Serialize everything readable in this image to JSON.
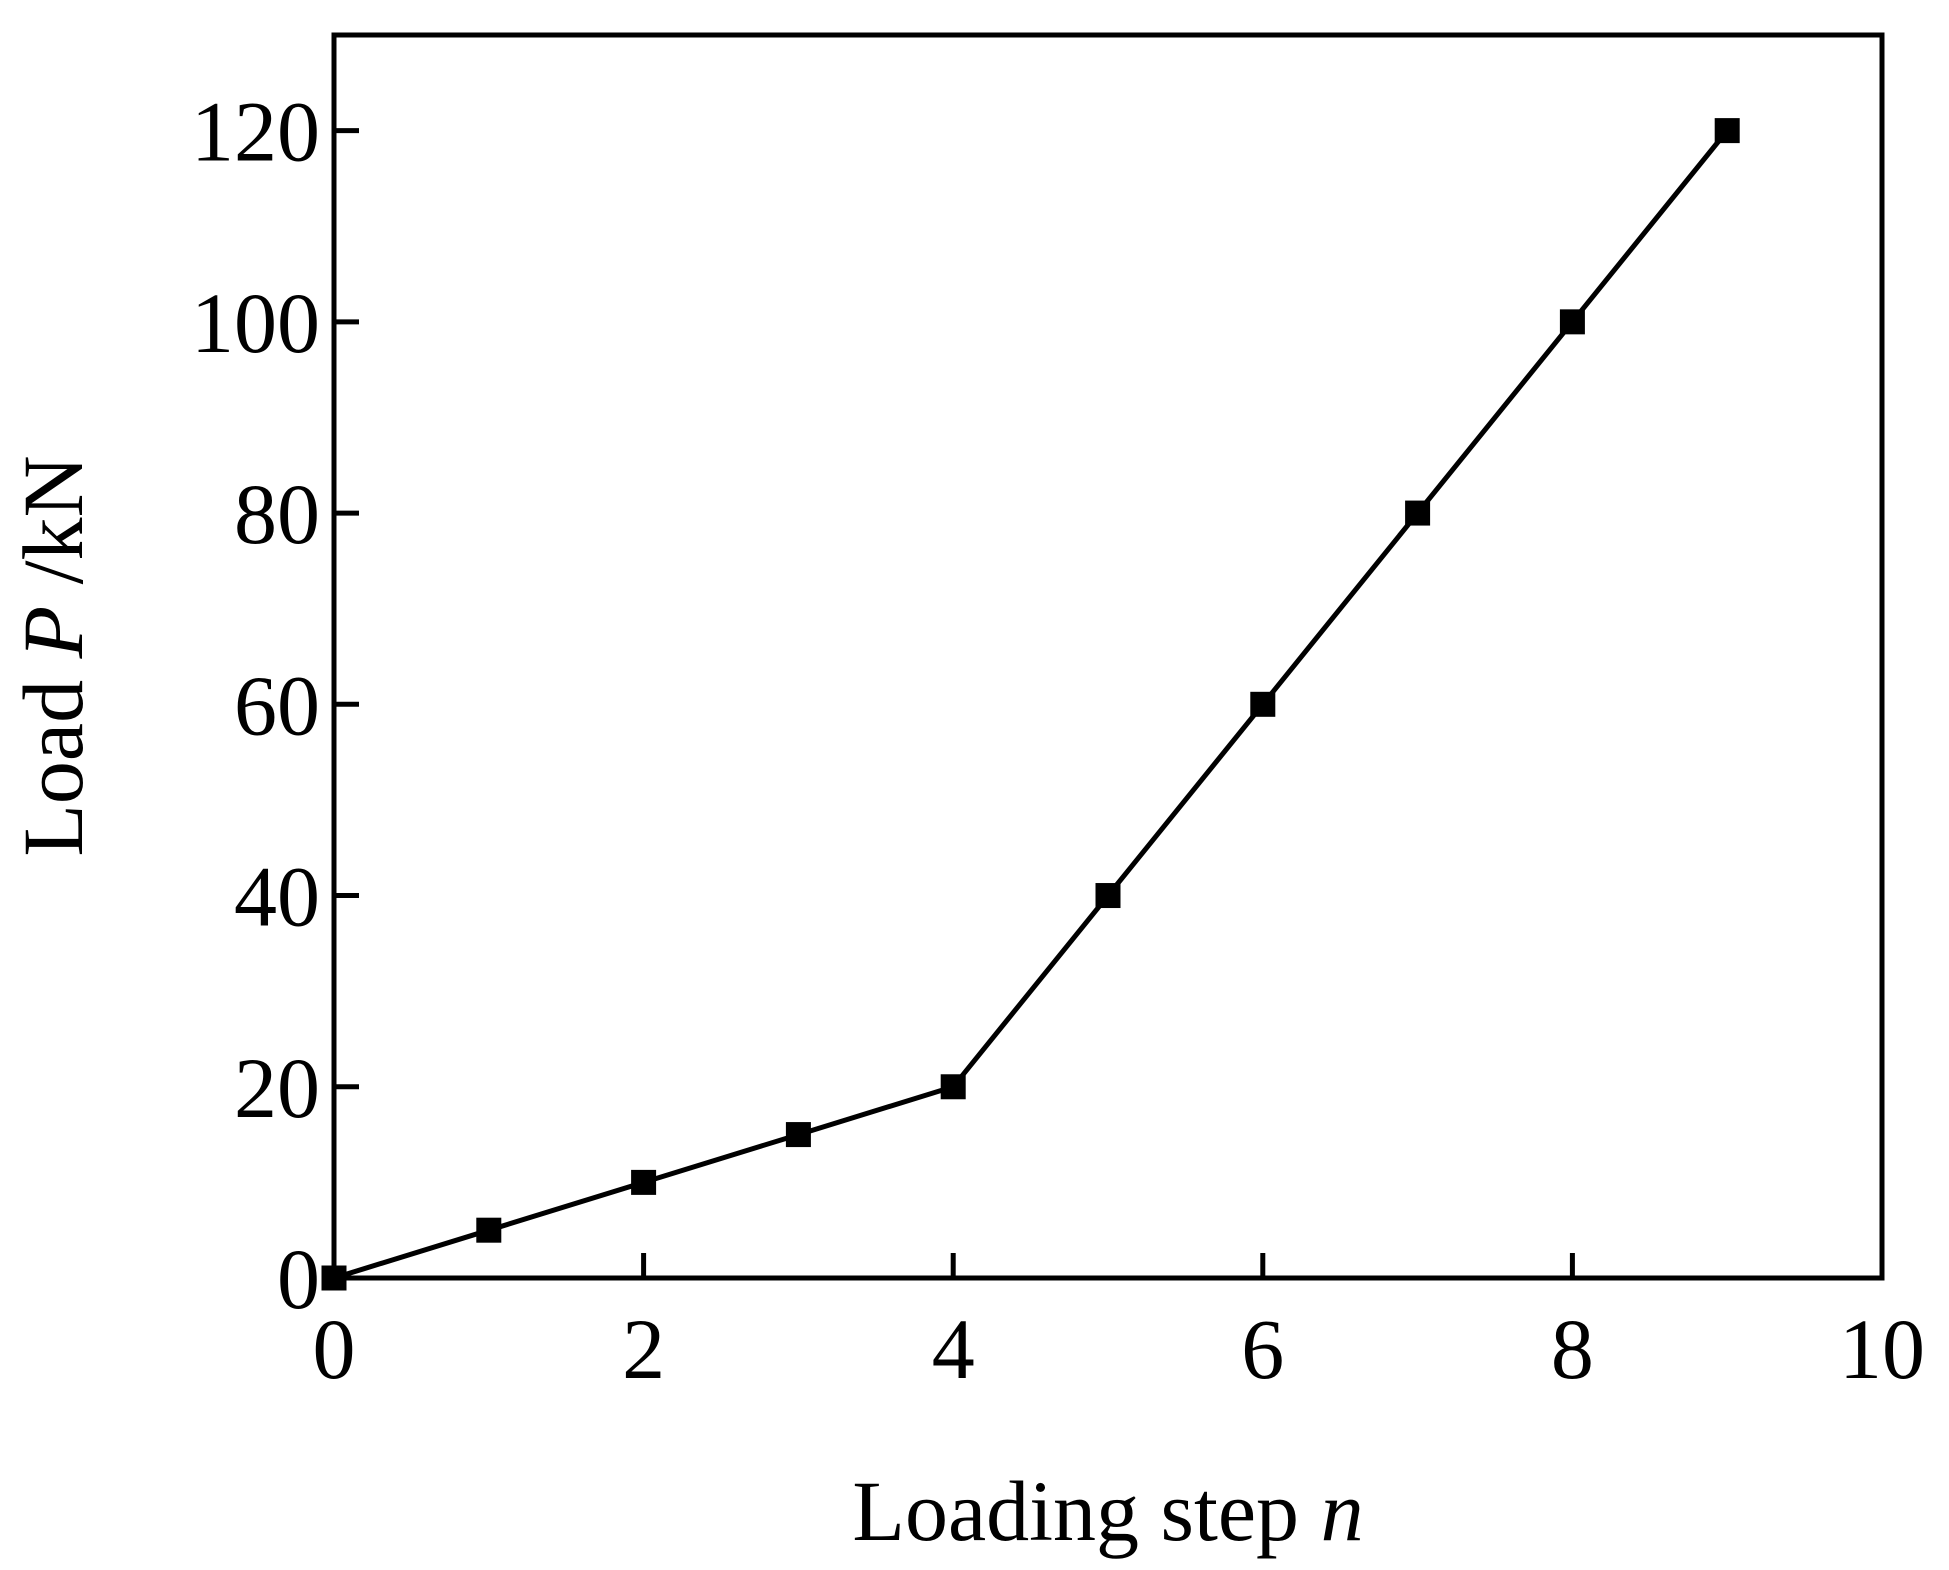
{
  "chart_data": {
    "type": "line",
    "xlabel": [
      "Loading step ",
      "n"
    ],
    "ylabel": [
      "Load ",
      "P",
      " /kN"
    ],
    "x": [
      0,
      1,
      2,
      3,
      4,
      5,
      6,
      7,
      8,
      9
    ],
    "series": [
      {
        "color": "#000000",
        "values": [
          0,
          5,
          10,
          15,
          20,
          40,
          60,
          80,
          100,
          120
        ]
      }
    ],
    "xlim": [
      0,
      10
    ],
    "ylim": [
      0,
      130
    ],
    "xticks": [
      0,
      2,
      4,
      6,
      8,
      10
    ],
    "yticks": [
      0,
      20,
      40,
      60,
      80,
      100,
      120
    ],
    "grid": false
  }
}
